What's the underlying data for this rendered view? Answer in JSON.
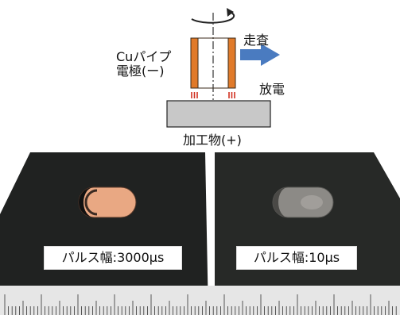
{
  "schematic": {
    "electrode_label_line1": "Cuパイプ",
    "electrode_label_line2": "電極(ー)",
    "scan_label": "走査",
    "discharge_label": "放電",
    "workpiece_label": "加工物(+)"
  },
  "photos": {
    "left_label": "パルス幅:3000μs",
    "right_label": "パルス幅:10μs"
  },
  "colors": {
    "electrode": "#e07a2a",
    "arrow": "#4a7bc0",
    "workpiece": "#c8c8c8",
    "discharge": "#d03020",
    "sample": "#202221",
    "copper": "#e9a883",
    "ruler": "#e6e6e6"
  }
}
